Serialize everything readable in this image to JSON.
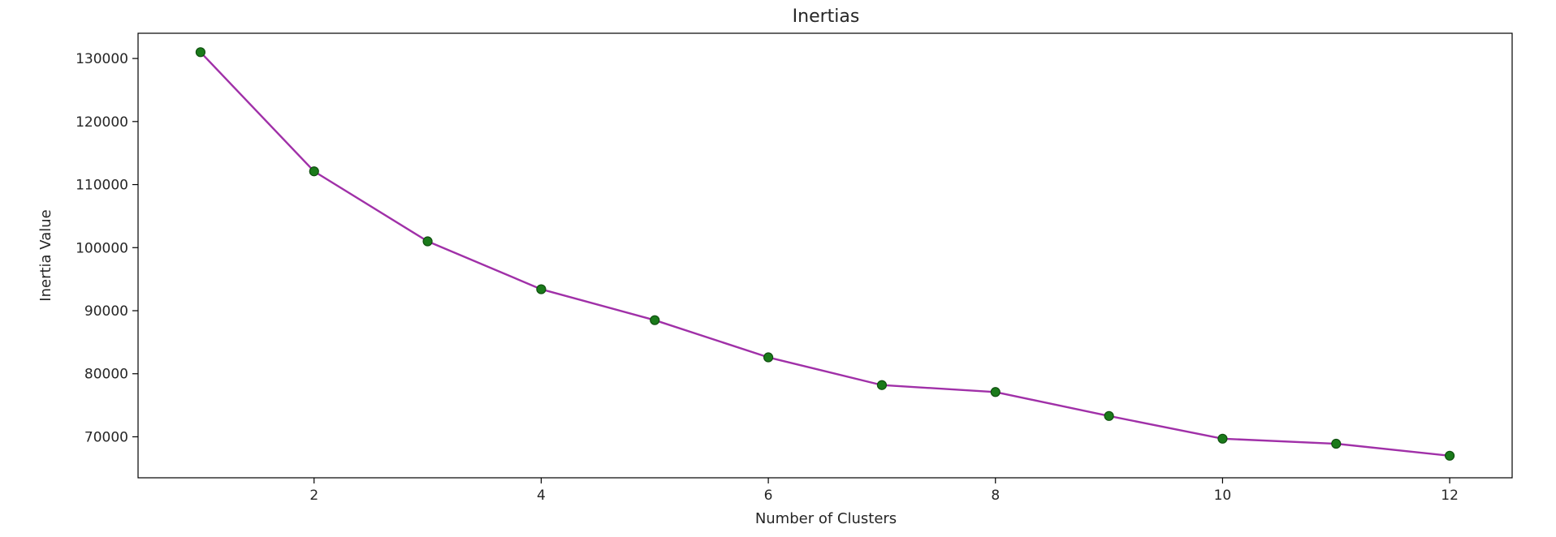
{
  "chart_data": {
    "type": "line",
    "title": "Inertias",
    "xlabel": "Number of Clusters",
    "ylabel": "Inertia Value",
    "x": [
      1,
      2,
      3,
      4,
      5,
      6,
      7,
      8,
      9,
      10,
      11,
      12
    ],
    "series": [
      {
        "values": [
          131000,
          112100,
          101000,
          93400,
          88500,
          82600,
          78200,
          77100,
          73300,
          69700,
          68900,
          67000
        ]
      }
    ],
    "xlim": [
      0.45,
      12.55
    ],
    "ylim": [
      63500,
      134000
    ],
    "xticks": [
      2,
      4,
      6,
      8,
      10,
      12
    ],
    "yticks": [
      70000,
      80000,
      90000,
      100000,
      110000,
      120000,
      130000
    ],
    "grid": false,
    "legend": "none",
    "colors": {
      "line": "#a030a8",
      "marker": "#1a7a1a",
      "marker_edge": "#0f4f0f",
      "axis": "#000000"
    }
  }
}
